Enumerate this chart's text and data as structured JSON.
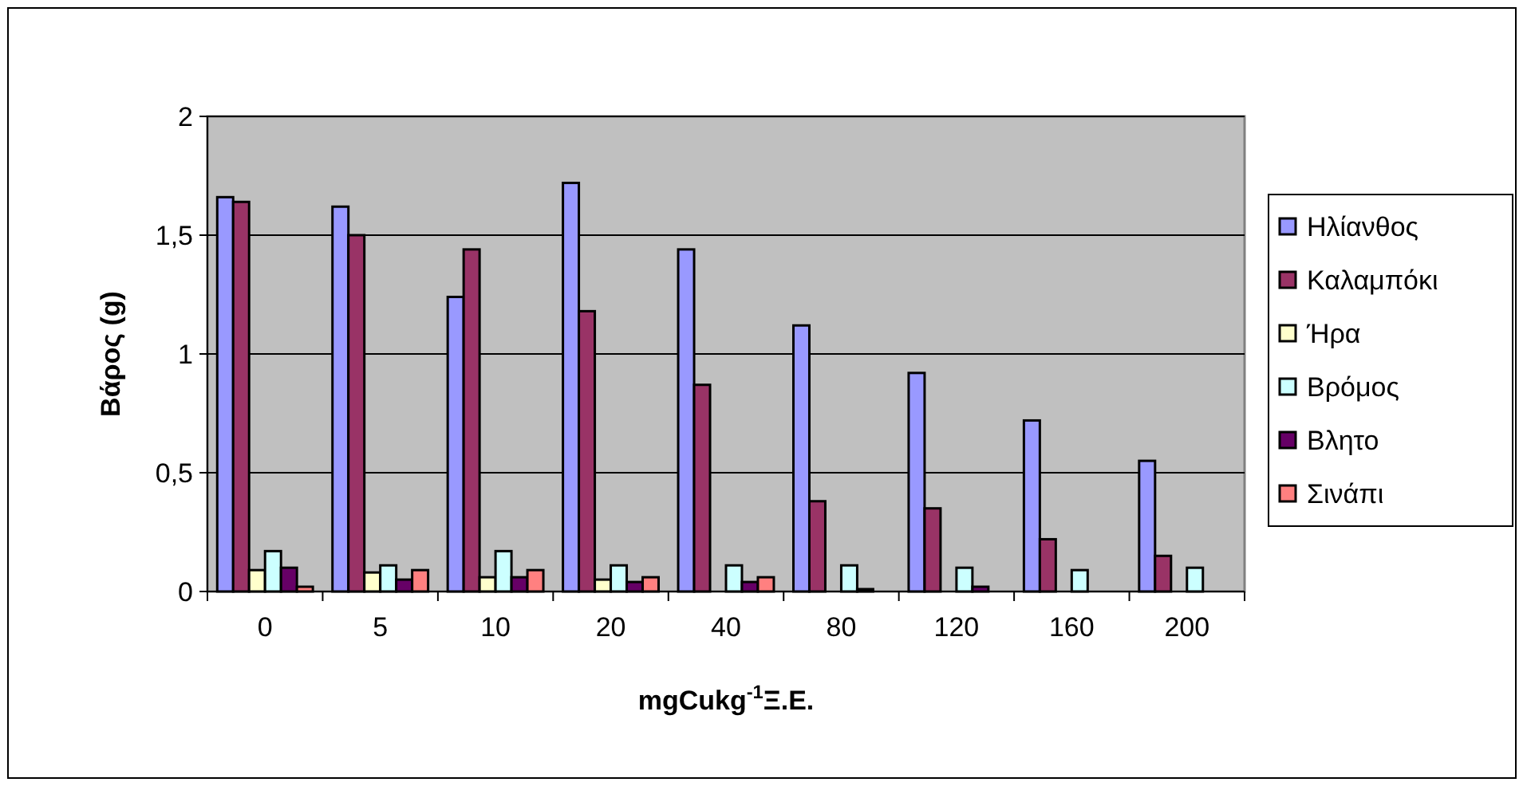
{
  "chart_data": {
    "type": "bar",
    "xlabel": "mgCukg$^{-1}$Ξ.Ε.",
    "ylabel": "Βάρος (g)",
    "categories": [
      "0",
      "5",
      "10",
      "20",
      "40",
      "80",
      "120",
      "160",
      "200"
    ],
    "series": [
      {
        "name": "Ηλίανθος",
        "color": "#9999ff",
        "values": [
          1.66,
          1.62,
          1.24,
          1.72,
          1.44,
          1.12,
          0.92,
          0.72,
          0.55
        ]
      },
      {
        "name": "Καλαμπόκι",
        "color": "#993366",
        "values": [
          1.64,
          1.5,
          1.44,
          1.18,
          0.87,
          0.38,
          0.35,
          0.22,
          0.15
        ]
      },
      {
        "name": "Ήρα",
        "color": "#ffffcc",
        "values": [
          0.09,
          0.08,
          0.06,
          0.05,
          null,
          null,
          null,
          null,
          null
        ]
      },
      {
        "name": "Βρόμος",
        "color": "#ccffff",
        "values": [
          0.17,
          0.11,
          0.17,
          0.11,
          0.11,
          0.11,
          0.1,
          0.09,
          0.1
        ]
      },
      {
        "name": "Βλητο",
        "color": "#660066",
        "values": [
          0.1,
          0.05,
          0.06,
          0.04,
          0.04,
          0.01,
          0.02,
          null,
          null
        ]
      },
      {
        "name": "Σινάπι",
        "color": "#ff8080",
        "values": [
          0.02,
          0.09,
          0.09,
          0.06,
          0.06,
          null,
          null,
          null,
          null
        ]
      }
    ],
    "ylim": [
      0,
      2
    ],
    "yticks": [
      {
        "value": 0,
        "label": "0"
      },
      {
        "value": 0.5,
        "label": "0,5"
      },
      {
        "value": 1,
        "label": "1"
      },
      {
        "value": 1.5,
        "label": "1,5"
      },
      {
        "value": 2,
        "label": "2"
      }
    ],
    "grid": "y",
    "legend": "right"
  }
}
